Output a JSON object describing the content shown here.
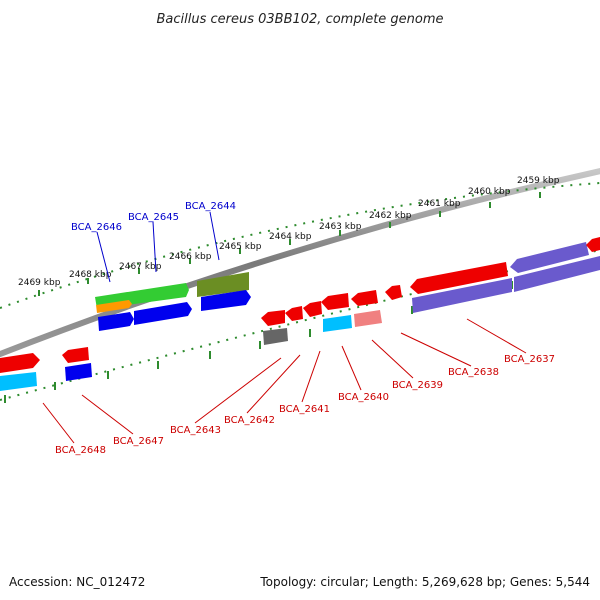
{
  "title": "Bacillus cereus 03BB102, complete genome",
  "footer": {
    "accession": "Accession: NC_012472",
    "summary": "Topology: circular; Length: 5,269,628 bp; Genes: 5,544"
  },
  "colors": {
    "backbone": "#808080",
    "ticks": "#2e8b2e",
    "label_top": "#0000cc",
    "label_bottom": "#cc0000"
  },
  "scale_labels": [
    "2459 kbp",
    "2460 kbp",
    "2461 kbp",
    "2462 kbp",
    "2463 kbp",
    "2464 kbp",
    "2465 kbp",
    "2466 kbp",
    "2467 kbp",
    "2468 kbp",
    "2469 kbp"
  ],
  "gene_labels_top": [
    "BCA_2646",
    "BCA_2645",
    "BCA_2644"
  ],
  "gene_labels_bottom": [
    "BCA_2648",
    "BCA_2647",
    "BCA_2643",
    "BCA_2642",
    "BCA_2641",
    "BCA_2640",
    "BCA_2639",
    "BCA_2638",
    "BCA_2637"
  ],
  "features": {
    "top_genes": [
      {
        "color": "#33cc33"
      },
      {
        "color": "#ff9900"
      },
      {
        "color": "#6b8e23"
      },
      {
        "color": "#0000ee"
      },
      {
        "color": "#0000ee"
      },
      {
        "color": "#0000ee"
      }
    ],
    "bottom_genes": [
      {
        "color": "#ee0000"
      },
      {
        "color": "#00bfff"
      },
      {
        "color": "#0000ee"
      },
      {
        "color": "#ee0000"
      },
      {
        "color": "#666666"
      },
      {
        "color": "#ee0000"
      },
      {
        "color": "#ee0000"
      },
      {
        "color": "#00bfff"
      },
      {
        "color": "#ee0000"
      },
      {
        "color": "#f08080"
      },
      {
        "color": "#ee0000"
      },
      {
        "color": "#ee0000"
      },
      {
        "color": "#ee0000"
      },
      {
        "color": "#ee0000"
      },
      {
        "color": "#6a5acd"
      },
      {
        "color": "#6a5acd"
      }
    ]
  }
}
